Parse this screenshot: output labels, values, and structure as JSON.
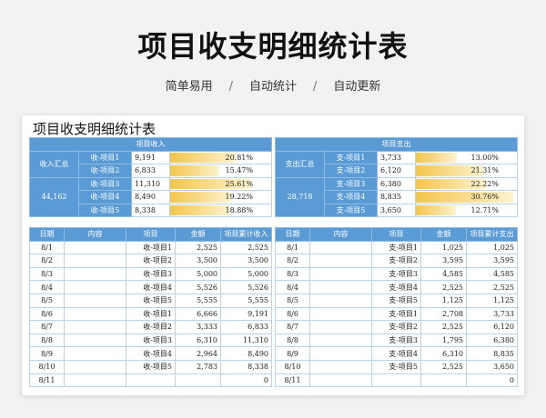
{
  "header": {
    "title": "项目收支明细统计表",
    "features": [
      "简单易用",
      "自动统计",
      "自动更新"
    ],
    "separator": "/"
  },
  "sheet": {
    "title": "项目收支明细统计表",
    "income": {
      "section_label": "项目收入",
      "left_label": "收入汇总",
      "total": "44,162",
      "rows": [
        {
          "name": "收-项目1",
          "amount": "9,191",
          "pct": "20.81%",
          "fill": 0.2081
        },
        {
          "name": "收-项目2",
          "amount": "6,833",
          "pct": "15.47%",
          "fill": 0.1547
        },
        {
          "name": "收-项目3",
          "amount": "11,310",
          "pct": "25.61%",
          "fill": 0.2561
        },
        {
          "name": "收-项目4",
          "amount": "8,490",
          "pct": "19.22%",
          "fill": 0.1922
        },
        {
          "name": "收-项目5",
          "amount": "8,338",
          "pct": "18.88%",
          "fill": 0.1888
        }
      ],
      "columns": [
        "日期",
        "内容",
        "项目",
        "金额",
        "项目累计收入"
      ],
      "detail": [
        [
          "8/1",
          "",
          "收-项目1",
          "2,525",
          "2,525"
        ],
        [
          "8/2",
          "",
          "收-项目2",
          "3,500",
          "3,500"
        ],
        [
          "8/3",
          "",
          "收-项目3",
          "5,000",
          "5,000"
        ],
        [
          "8/4",
          "",
          "收-项目4",
          "5,526",
          "5,526"
        ],
        [
          "8/5",
          "",
          "收-项目5",
          "5,555",
          "5,555"
        ],
        [
          "8/6",
          "",
          "收-项目1",
          "6,666",
          "9,191"
        ],
        [
          "8/7",
          "",
          "收-项目2",
          "3,333",
          "6,833"
        ],
        [
          "8/8",
          "",
          "收-项目3",
          "6,310",
          "11,310"
        ],
        [
          "8/9",
          "",
          "收-项目4",
          "2,964",
          "8,490"
        ],
        [
          "8/10",
          "",
          "收-项目5",
          "2,783",
          "8,338"
        ],
        [
          "8/11",
          "",
          "",
          "",
          "0"
        ]
      ]
    },
    "expense": {
      "section_label": "项目支出",
      "left_label": "支出汇总",
      "total": "28,718",
      "rows": [
        {
          "name": "支-项目1",
          "amount": "3,733",
          "pct": "13.00%",
          "fill": 0.13
        },
        {
          "name": "支-项目2",
          "amount": "6,120",
          "pct": "21.31%",
          "fill": 0.2131
        },
        {
          "name": "支-项目3",
          "amount": "6,380",
          "pct": "22.22%",
          "fill": 0.2222
        },
        {
          "name": "支-项目4",
          "amount": "8,835",
          "pct": "30.76%",
          "fill": 0.3076
        },
        {
          "name": "支-项目5",
          "amount": "3,650",
          "pct": "12.71%",
          "fill": 0.1271
        }
      ],
      "columns": [
        "日期",
        "内容",
        "项目",
        "金额",
        "项目累计支出"
      ],
      "detail": [
        [
          "8/1",
          "",
          "支-项目1",
          "1,025",
          "1,025"
        ],
        [
          "8/2",
          "",
          "支-项目2",
          "3,595",
          "3,595"
        ],
        [
          "8/3",
          "",
          "支-项目3",
          "4,585",
          "4,585"
        ],
        [
          "8/4",
          "",
          "支-项目4",
          "2,525",
          "2,525"
        ],
        [
          "8/5",
          "",
          "支-项目5",
          "1,125",
          "1,125"
        ],
        [
          "8/6",
          "",
          "支-项目1",
          "2,708",
          "3,733"
        ],
        [
          "8/7",
          "",
          "支-项目2",
          "2,525",
          "6,120"
        ],
        [
          "8/8",
          "",
          "支-项目3",
          "1,795",
          "6,380"
        ],
        [
          "8/9",
          "",
          "支-项目4",
          "6,310",
          "8,835"
        ],
        [
          "8/10",
          "",
          "支-项目5",
          "2,525",
          "3,650"
        ],
        [
          "8/11",
          "",
          "",
          "",
          "0"
        ]
      ]
    }
  },
  "colors": {
    "header_blue": "#5b9bd5",
    "border_blue": "#b9d4ea",
    "bar_gold": "#f3c54b"
  }
}
